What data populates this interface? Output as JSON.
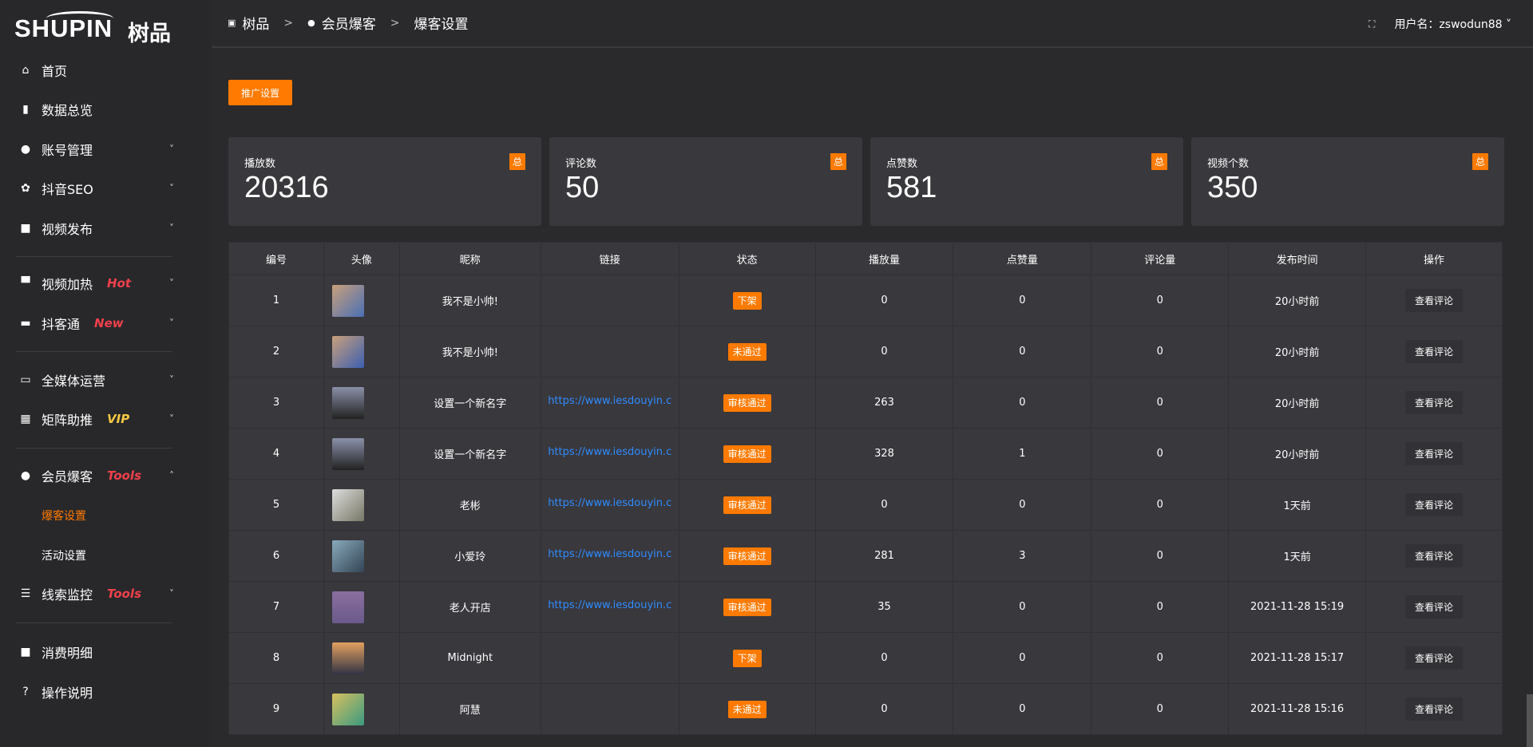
{
  "brand": {
    "logo_text": "SHUPIN",
    "logo_cn": "树品"
  },
  "sidebar": {
    "items": [
      {
        "label": "首页",
        "icon": "home-icon",
        "glyph": "⌂"
      },
      {
        "label": "数据总览",
        "icon": "bar-chart-icon",
        "glyph": "▮"
      },
      {
        "label": "账号管理",
        "icon": "user-icon",
        "glyph": "●",
        "chevron": "down"
      },
      {
        "label": "抖音SEO",
        "icon": "gear-icon",
        "glyph": "✿",
        "chevron": "down"
      },
      {
        "label": "视频发布",
        "icon": "camera-icon",
        "glyph": "■",
        "chevron": "down"
      },
      {
        "label": "视频加热",
        "icon": "billboard-icon",
        "glyph": "▀",
        "tag": "Hot",
        "chevron": "down"
      },
      {
        "label": "抖客通",
        "icon": "chat-icon",
        "glyph": "▬",
        "tag": "New",
        "chevron": "down"
      },
      {
        "label": "全媒体运营",
        "icon": "monitor-icon",
        "glyph": "▭",
        "chevron": "down"
      },
      {
        "label": "矩阵助推",
        "icon": "grid-icon",
        "glyph": "▦",
        "tag": "VIP",
        "chevron": "down"
      },
      {
        "label": "会员爆客",
        "icon": "user-icon",
        "glyph": "●",
        "tag": "Tools",
        "chevron": "up"
      },
      {
        "label": "线索监控",
        "icon": "sliders-icon",
        "glyph": "☰",
        "tag": "Tools",
        "chevron": "down"
      },
      {
        "label": "消费明细",
        "icon": "wallet-icon",
        "glyph": "■"
      },
      {
        "label": "操作说明",
        "icon": "help-icon",
        "glyph": "?"
      }
    ],
    "sub": [
      {
        "label": "爆客设置",
        "active": true
      },
      {
        "label": "活动设置"
      }
    ]
  },
  "header": {
    "breadcrumb": [
      "树品",
      "会员爆客",
      "爆客设置"
    ],
    "user_label": "用户名：zswodun88"
  },
  "promo_button": "推广设置",
  "stats": [
    {
      "label": "播放数",
      "value": "20316",
      "badge": "总"
    },
    {
      "label": "评论数",
      "value": "50",
      "badge": "总"
    },
    {
      "label": "点赞数",
      "value": "581",
      "badge": "总"
    },
    {
      "label": "视频个数",
      "value": "350",
      "badge": "总"
    }
  ],
  "table": {
    "columns": [
      "编号",
      "头像",
      "昵称",
      "链接",
      "状态",
      "播放量",
      "点赞量",
      "评论量",
      "发布时间",
      "操作"
    ],
    "rows": [
      [
        "1",
        "",
        "我不是小帅!",
        "",
        "下架",
        "0",
        "0",
        "0",
        "20小时前",
        "查看评论"
      ],
      [
        "2",
        "",
        "我不是小帅!",
        "",
        "未通过",
        "0",
        "0",
        "0",
        "20小时前",
        "查看评论"
      ],
      [
        "3",
        "",
        "设置一个新名字",
        "https://www.iesdouyin.c",
        "审核通过",
        "263",
        "0",
        "0",
        "20小时前",
        "查看评论"
      ],
      [
        "4",
        "",
        "设置一个新名字",
        "https://www.iesdouyin.c",
        "审核通过",
        "328",
        "1",
        "0",
        "20小时前",
        "查看评论"
      ],
      [
        "5",
        "",
        "老彬",
        "https://www.iesdouyin.c",
        "审核通过",
        "0",
        "0",
        "0",
        "1天前",
        "查看评论"
      ],
      [
        "6",
        "",
        "小爱玲",
        "https://www.iesdouyin.c",
        "审核通过",
        "281",
        "3",
        "0",
        "1天前",
        "查看评论"
      ],
      [
        "7",
        "",
        "老人开店",
        "https://www.iesdouyin.c",
        "审核通过",
        "35",
        "0",
        "0",
        "2021-11-28 15:19",
        "查看评论"
      ],
      [
        "8",
        "",
        "Midnight",
        "",
        "下架",
        "0",
        "0",
        "0",
        "2021-11-28 15:17",
        "查看评论"
      ],
      [
        "9",
        "",
        "阿慧",
        "",
        "未通过",
        "0",
        "0",
        "0",
        "2021-11-28 15:16",
        "查看评论"
      ]
    ]
  },
  "colors": {
    "accent": "#ff7a00",
    "link": "#2f8cff",
    "tag_red": "#f0404a",
    "tag_vip": "#f5c842"
  }
}
